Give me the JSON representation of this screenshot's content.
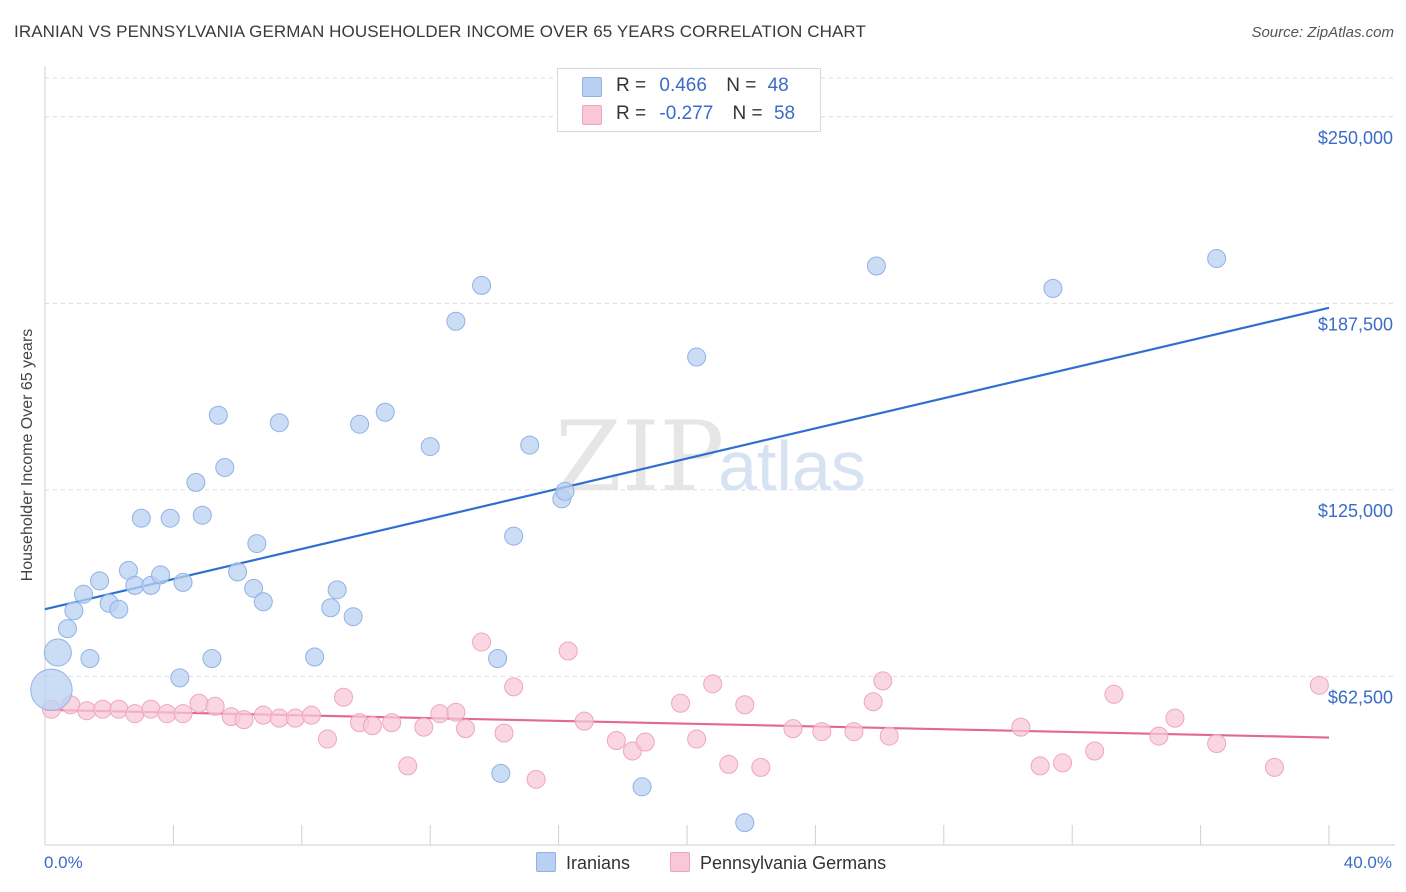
{
  "title": "IRANIAN VS PENNSYLVANIA GERMAN HOUSEHOLDER INCOME OVER 65 YEARS CORRELATION CHART",
  "source": "Source: ZipAtlas.com",
  "watermark": {
    "zip": "ZIP",
    "atlas": "atlas"
  },
  "legend": {
    "rows": [
      {
        "r_label": "R =",
        "r_value": "0.466",
        "n_label": "N =",
        "n_value": "48"
      },
      {
        "r_label": "R =",
        "r_value": "-0.277",
        "n_label": "N =",
        "n_value": "58"
      }
    ]
  },
  "colors": {
    "iranians_fill": "#b9d0f2",
    "iranians_stroke": "#8fb2e6",
    "iranians_line": "#2f6fd0",
    "pa_fill": "#f8c8d8",
    "pa_stroke": "#eea6bf",
    "pa_line": "#e06a95",
    "axis_text": "#3a6cc7",
    "grid": "#dcdcdc"
  },
  "chart_data": {
    "type": "scatter",
    "title": "IRANIAN VS PENNSYLVANIA GERMAN HOUSEHOLDER INCOME OVER 65 YEARS CORRELATION CHART",
    "xlabel": "",
    "ylabel": "Householder Income Over 65 years",
    "x_tick_labels": [
      "0.0%",
      "40.0%"
    ],
    "y_tick_labels": [
      "$250,000",
      "$187,500",
      "$125,000",
      "$62,500"
    ],
    "y_ticks": [
      250000,
      187500,
      125000,
      62500
    ],
    "xlim": [
      0,
      40
    ],
    "ylim": [
      6000,
      263000
    ],
    "grid": true,
    "legend_placement": "bottom",
    "series": [
      {
        "name": "Iranians",
        "points": [
          [
            0.4,
            70500,
            1.5
          ],
          [
            0.7,
            78500,
            1
          ],
          [
            0.9,
            84500,
            1
          ],
          [
            1.2,
            90000,
            1
          ],
          [
            1.4,
            68500,
            1
          ],
          [
            1.7,
            94500,
            1
          ],
          [
            2.0,
            87000,
            1
          ],
          [
            2.3,
            85000,
            1
          ],
          [
            2.6,
            98000,
            1
          ],
          [
            2.8,
            93000,
            1
          ],
          [
            3.0,
            115500,
            1
          ],
          [
            3.3,
            93000,
            1
          ],
          [
            3.6,
            96500,
            1
          ],
          [
            3.9,
            115500,
            1
          ],
          [
            4.2,
            62000,
            1
          ],
          [
            4.3,
            94000,
            1
          ],
          [
            4.7,
            127500,
            1
          ],
          [
            4.9,
            116500,
            1
          ],
          [
            5.2,
            68500,
            1
          ],
          [
            5.4,
            150000,
            1
          ],
          [
            5.6,
            132500,
            1
          ],
          [
            6.0,
            97500,
            1
          ],
          [
            6.6,
            107000,
            1
          ],
          [
            6.5,
            92000,
            1
          ],
          [
            6.8,
            87500,
            1
          ],
          [
            7.3,
            147500,
            1
          ],
          [
            8.4,
            69000,
            1
          ],
          [
            8.9,
            85500,
            1
          ],
          [
            9.1,
            91500,
            1
          ],
          [
            9.6,
            82500,
            1
          ],
          [
            9.8,
            147000,
            1
          ],
          [
            10.6,
            151000,
            1
          ],
          [
            12.0,
            139500,
            1
          ],
          [
            12.8,
            181500,
            1
          ],
          [
            13.6,
            193500,
            1
          ],
          [
            14.1,
            68500,
            1
          ],
          [
            14.2,
            30000,
            1
          ],
          [
            14.6,
            109500,
            1
          ],
          [
            15.1,
            140000,
            1
          ],
          [
            16.1,
            122000,
            1
          ],
          [
            16.2,
            124500,
            1
          ],
          [
            18.6,
            25500,
            1
          ],
          [
            20.3,
            169500,
            1
          ],
          [
            21.8,
            13500,
            1
          ],
          [
            25.9,
            200000,
            1
          ],
          [
            31.4,
            192500,
            1
          ],
          [
            36.5,
            202500,
            1
          ],
          [
            0.2,
            58000,
            2.3
          ]
        ],
        "trend": {
          "x": [
            0,
            40
          ],
          "y": [
            85000,
            186000
          ]
        }
      },
      {
        "name": "Pennsylvania Germans",
        "points": [
          [
            0.8,
            53000,
            1
          ],
          [
            1.3,
            51000,
            1
          ],
          [
            1.8,
            51500,
            1
          ],
          [
            2.3,
            51500,
            1
          ],
          [
            2.8,
            50000,
            1
          ],
          [
            3.3,
            51500,
            1
          ],
          [
            3.8,
            50000,
            1
          ],
          [
            4.3,
            50000,
            1
          ],
          [
            4.8,
            53500,
            1
          ],
          [
            5.3,
            52500,
            1
          ],
          [
            5.8,
            49000,
            1
          ],
          [
            6.2,
            48000,
            1
          ],
          [
            6.8,
            49500,
            1
          ],
          [
            7.3,
            48500,
            1
          ],
          [
            7.8,
            48500,
            1
          ],
          [
            8.3,
            49500,
            1
          ],
          [
            8.8,
            41500,
            1
          ],
          [
            9.3,
            55500,
            1
          ],
          [
            9.8,
            47000,
            1
          ],
          [
            10.2,
            46000,
            1
          ],
          [
            10.8,
            47000,
            1
          ],
          [
            11.3,
            32500,
            1
          ],
          [
            11.8,
            45500,
            1
          ],
          [
            12.3,
            50000,
            1
          ],
          [
            12.8,
            50500,
            1
          ],
          [
            13.1,
            45000,
            1
          ],
          [
            13.6,
            74000,
            1
          ],
          [
            14.3,
            43500,
            1
          ],
          [
            14.6,
            59000,
            1
          ],
          [
            15.3,
            28000,
            1
          ],
          [
            16.3,
            71000,
            1
          ],
          [
            16.8,
            47500,
            1
          ],
          [
            17.8,
            41000,
            1
          ],
          [
            18.3,
            37500,
            1
          ],
          [
            18.7,
            40500,
            1
          ],
          [
            19.8,
            53500,
            1
          ],
          [
            20.3,
            41500,
            1
          ],
          [
            20.8,
            60000,
            1
          ],
          [
            21.3,
            33000,
            1
          ],
          [
            21.8,
            53000,
            1
          ],
          [
            22.3,
            32000,
            1
          ],
          [
            23.3,
            45000,
            1
          ],
          [
            24.2,
            44000,
            1
          ],
          [
            25.2,
            44000,
            1
          ],
          [
            25.8,
            54000,
            1
          ],
          [
            26.1,
            61000,
            1
          ],
          [
            26.3,
            42500,
            1
          ],
          [
            30.4,
            45500,
            1
          ],
          [
            31.0,
            32500,
            1
          ],
          [
            31.7,
            33500,
            1
          ],
          [
            32.7,
            37500,
            1
          ],
          [
            33.3,
            56500,
            1
          ],
          [
            34.7,
            42500,
            1
          ],
          [
            35.2,
            48500,
            1
          ],
          [
            36.5,
            40000,
            1
          ],
          [
            38.3,
            32000,
            1
          ],
          [
            39.7,
            59500,
            1
          ],
          [
            0.2,
            51500,
            1
          ]
        ],
        "trend": {
          "x": [
            0,
            40
          ],
          "y": [
            51300,
            42000
          ]
        }
      }
    ]
  }
}
